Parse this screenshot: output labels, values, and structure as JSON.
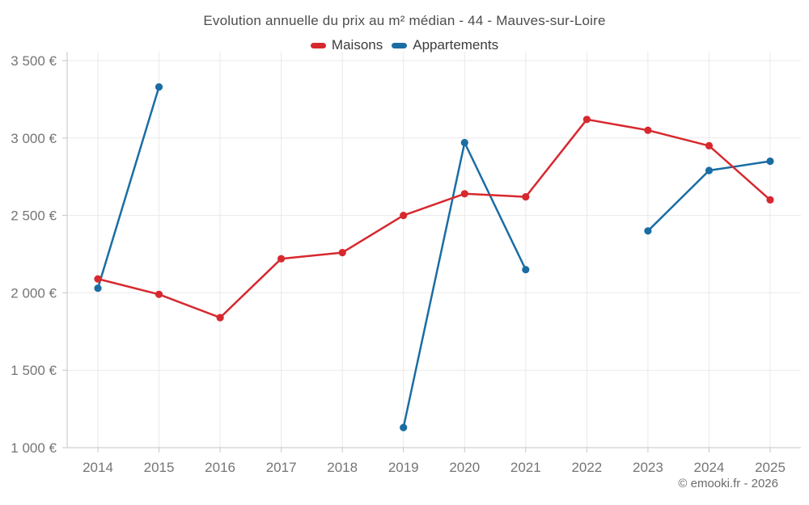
{
  "chart_data": {
    "type": "line",
    "title": "Evolution annuelle du prix au m² médian - 44 - Mauves-sur-Loire",
    "xlabel": "",
    "ylabel": "",
    "x": [
      "2014",
      "2015",
      "2016",
      "2017",
      "2018",
      "2019",
      "2020",
      "2021",
      "2022",
      "2023",
      "2024",
      "2025"
    ],
    "series": [
      {
        "name": "Maisons",
        "color": "#d7282e",
        "values": [
          2090,
          1990,
          1840,
          2220,
          2260,
          2500,
          2640,
          2620,
          3120,
          3050,
          2950,
          2600
        ]
      },
      {
        "name": "Appartements",
        "color": "#1a6da3",
        "values": [
          2030,
          3330,
          null,
          null,
          null,
          1130,
          2970,
          2150,
          null,
          2400,
          2790,
          2850
        ]
      }
    ],
    "ylim": [
      1000,
      3500
    ],
    "yticks": [
      {
        "value": 1000,
        "label": "1 000 €"
      },
      {
        "value": 1500,
        "label": "1 500 €"
      },
      {
        "value": 2000,
        "label": "2 000 €"
      },
      {
        "value": 2500,
        "label": "2 500 €"
      },
      {
        "value": 3000,
        "label": "3 000 €"
      },
      {
        "value": 3500,
        "label": "3 500 €"
      }
    ],
    "grid": true,
    "legend_position": "top"
  },
  "colors": {
    "background": "#ffffff",
    "grid": "#e9e9e9",
    "axis": "#c6c6c6",
    "tick_label": "#757575",
    "title_text": "#4d4d4d",
    "legend_text": "#3c3c3c",
    "watermark_text": "#6b6b6b"
  },
  "watermark": "© emooki.fr - 2026"
}
